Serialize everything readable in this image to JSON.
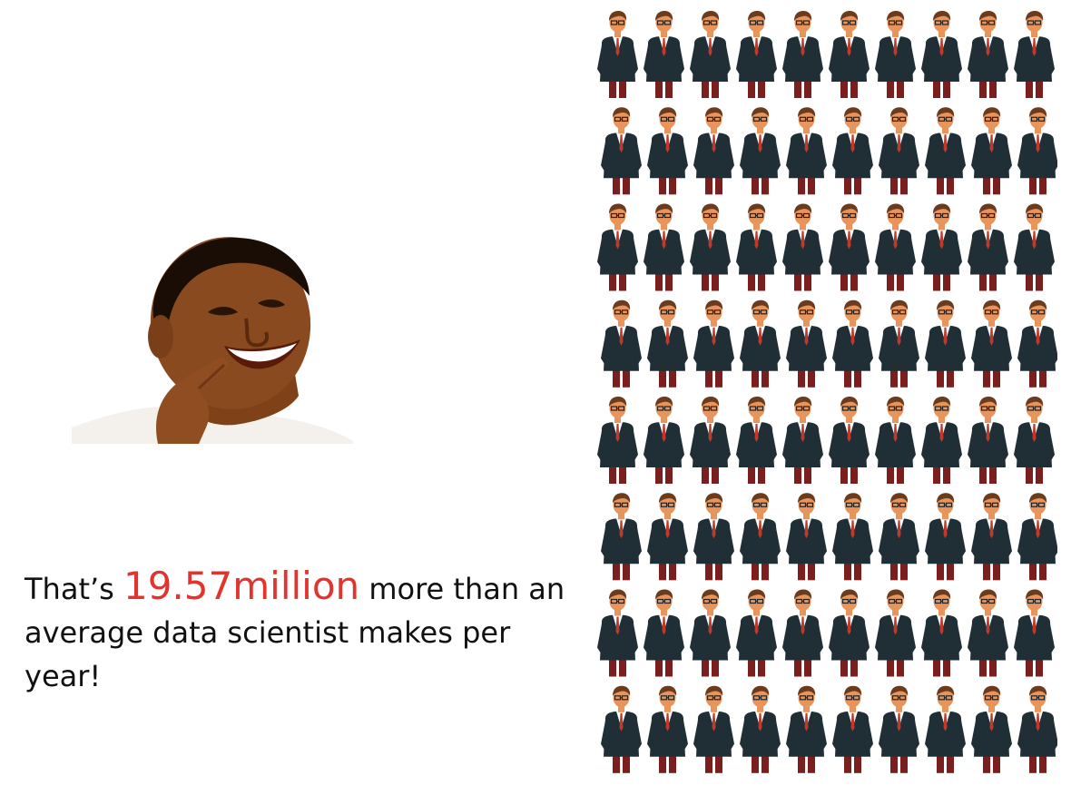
{
  "caption": {
    "prefix": "That’s ",
    "amount": "19.57million",
    "suffix": " more than an average data scientist makes per year!",
    "amount_color": "#e2332f",
    "text_color": "#111111"
  },
  "photo": {
    "icon": "smiling-man-photo",
    "skin_color": "#8a4a1f",
    "shirt_color": "#f4f1ec"
  },
  "people_grid": {
    "icon": "businessman-icon",
    "rows": 8,
    "columns": 10,
    "colors": {
      "skin": "#e8945a",
      "hair": "#6b3b1e",
      "jacket": "#1f2f35",
      "shirt": "#ffffff",
      "tie": "#c0392b",
      "pants": "#7a1e1e",
      "glasses": "#222222"
    }
  }
}
